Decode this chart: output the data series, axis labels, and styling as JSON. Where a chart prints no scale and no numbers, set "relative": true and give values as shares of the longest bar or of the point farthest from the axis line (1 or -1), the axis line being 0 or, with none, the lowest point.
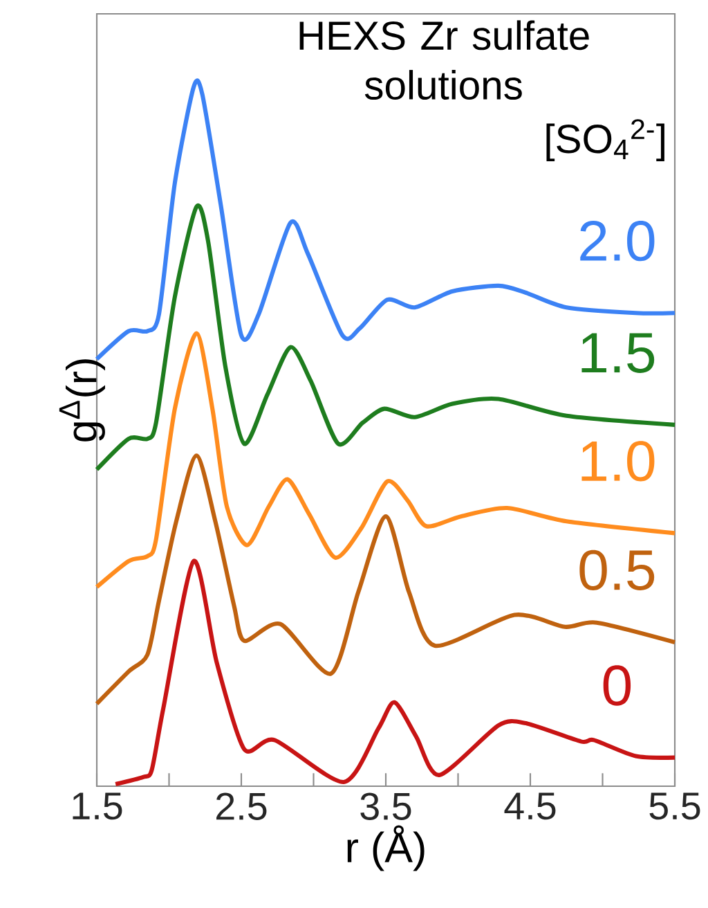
{
  "chart_data": {
    "type": "line",
    "relative": true,
    "title": "HEXS Zr sulfate solutions",
    "legend_title": "[SO$_{4}$$^{2-}$]",
    "xlabel": "r (Å)",
    "ylabel": "g$^{Δ}$(r)",
    "xlim": [
      1.5,
      5.5
    ],
    "xticks": [
      1.5,
      {
        "value": 2.0,
        "label": null
      },
      2.5,
      {
        "value": 3.0,
        "label": null
      },
      3.5,
      {
        "value": 4.0,
        "label": null
      },
      4.5,
      {
        "value": 5.0,
        "label": null
      },
      5.5
    ],
    "tick_labels": "x",
    "grid": false,
    "marker": "none",
    "line_style": "solid",
    "series": [
      {
        "name": "2.0",
        "color": "#3c82f5",
        "x": [
          1.5,
          1.72,
          1.85,
          1.93,
          2.04,
          2.17,
          2.23,
          2.36,
          2.5,
          2.62,
          2.84,
          2.96,
          3.2,
          3.32,
          3.51,
          3.7,
          3.96,
          4.28,
          4.47,
          4.75,
          5.23,
          5.5
        ],
        "values": [
          0.611,
          0.651,
          0.651,
          0.675,
          0.863,
          1.0,
          0.99,
          0.829,
          0.645,
          0.675,
          0.806,
          0.762,
          0.645,
          0.655,
          0.696,
          0.685,
          0.708,
          0.716,
          0.706,
          0.685,
          0.677,
          0.677
        ]
      },
      {
        "name": "1.5",
        "color": "#1e7d1e",
        "x": [
          1.5,
          1.72,
          1.85,
          1.91,
          2.04,
          2.19,
          2.27,
          2.39,
          2.52,
          2.68,
          2.84,
          2.98,
          3.17,
          3.34,
          3.49,
          3.7,
          3.96,
          4.28,
          4.75,
          5.5
        ],
        "values": [
          0.453,
          0.497,
          0.497,
          0.52,
          0.7,
          0.829,
          0.78,
          0.6,
          0.49,
          0.56,
          0.628,
          0.58,
          0.49,
          0.52,
          0.54,
          0.528,
          0.547,
          0.554,
          0.53,
          0.517
        ]
      },
      {
        "name": "1.0",
        "color": "#ff8c1e",
        "x": [
          1.5,
          1.72,
          1.85,
          1.91,
          2.04,
          2.19,
          2.3,
          2.4,
          2.54,
          2.69,
          2.82,
          2.97,
          3.15,
          3.33,
          3.51,
          3.65,
          3.78,
          4.02,
          4.34,
          4.75,
          5.5
        ],
        "values": [
          0.285,
          0.322,
          0.329,
          0.353,
          0.54,
          0.648,
          0.54,
          0.4,
          0.345,
          0.4,
          0.439,
          0.389,
          0.327,
          0.369,
          0.436,
          0.409,
          0.372,
          0.386,
          0.398,
          0.379,
          0.362
        ]
      },
      {
        "name": "0.5",
        "color": "#c0620f",
        "x": [
          1.5,
          1.72,
          1.85,
          1.93,
          2.05,
          2.19,
          2.32,
          2.45,
          2.52,
          2.77,
          3.12,
          3.31,
          3.5,
          3.66,
          3.84,
          4.39,
          4.74,
          4.96,
          5.5
        ],
        "values": [
          0.118,
          0.164,
          0.188,
          0.265,
          0.379,
          0.473,
          0.379,
          0.258,
          0.208,
          0.232,
          0.161,
          0.278,
          0.386,
          0.278,
          0.201,
          0.245,
          0.228,
          0.234,
          0.206
        ]
      },
      {
        "name": "0",
        "color": "#c81414",
        "x": [
          1.63,
          1.82,
          1.88,
          1.96,
          2.17,
          2.33,
          2.52,
          2.73,
          3.21,
          3.45,
          3.56,
          3.71,
          3.87,
          4.28,
          4.47,
          4.85,
          4.94,
          5.23,
          5.5
        ],
        "values": [
          0.003,
          0.013,
          0.023,
          0.111,
          0.322,
          0.177,
          0.053,
          0.066,
          0.006,
          0.083,
          0.12,
          0.071,
          0.016,
          0.087,
          0.09,
          0.064,
          0.066,
          0.043,
          0.041
        ]
      }
    ]
  }
}
